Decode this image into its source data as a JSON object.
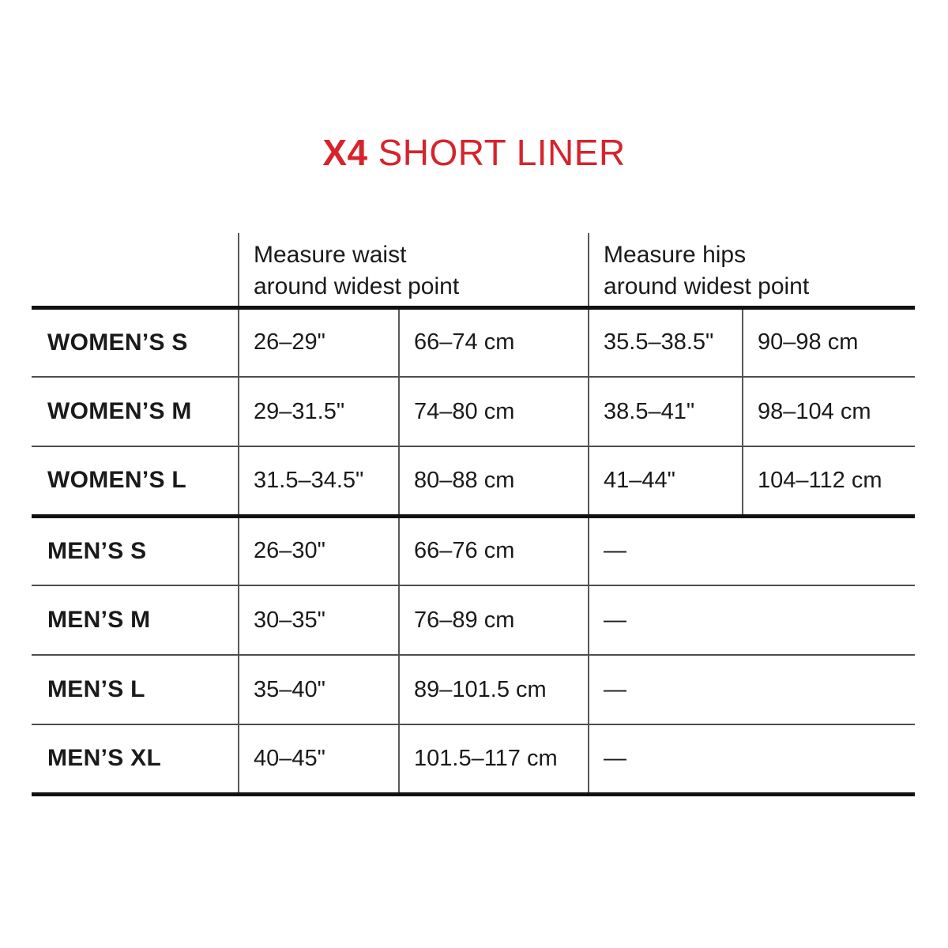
{
  "title": {
    "brand": "X4",
    "product": "SHORT LINER"
  },
  "colors": {
    "accent_red": "#d7232c",
    "text": "#1a1a1a",
    "thick_rule": "#111111",
    "thin_rule": "#57585a"
  },
  "table": {
    "column_headers": {
      "waist": "Measure waist\naround widest point",
      "hips": "Measure hips\naround widest point"
    },
    "rows": [
      {
        "label": "WOMEN’S S",
        "waist_in": "26–29\"",
        "waist_cm": "66–74 cm",
        "hips_in": "35.5–38.5\"",
        "hips_cm": "90–98 cm"
      },
      {
        "label": "WOMEN’S M",
        "waist_in": "29–31.5\"",
        "waist_cm": "74–80 cm",
        "hips_in": "38.5–41\"",
        "hips_cm": "98–104 cm"
      },
      {
        "label": "WOMEN’S L",
        "waist_in": "31.5–34.5\"",
        "waist_cm": "80–88 cm",
        "hips_in": "41–44\"",
        "hips_cm": "104–112 cm"
      },
      {
        "label": "MEN’S S",
        "waist_in": "26–30\"",
        "waist_cm": "66–76 cm",
        "hips": "—"
      },
      {
        "label": "MEN’S M",
        "waist_in": "30–35\"",
        "waist_cm": "76–89 cm",
        "hips": "—"
      },
      {
        "label": "MEN’S L",
        "waist_in": "35–40\"",
        "waist_cm": "89–101.5 cm",
        "hips": "—"
      },
      {
        "label": "MEN’S XL",
        "waist_in": "40–45\"",
        "waist_cm": "101.5–117 cm",
        "hips": "—"
      }
    ]
  }
}
